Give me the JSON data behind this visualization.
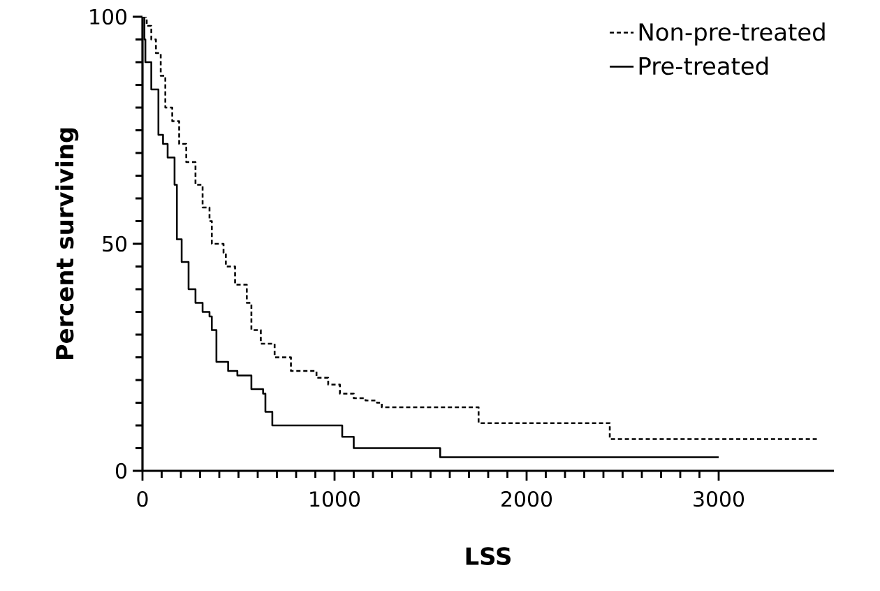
{
  "chart_data": {
    "type": "step",
    "xlabel": "LSS",
    "ylabel": "Percent surviving",
    "xlim": [
      0,
      3600
    ],
    "ylim": [
      0,
      100
    ],
    "xticks": [
      0,
      1000,
      2000,
      3000
    ],
    "yticks": [
      0,
      50,
      100
    ],
    "grid": false,
    "legend": "top right",
    "series": [
      {
        "name": "Non-pre-treated",
        "color": "#000000",
        "line_style": "dashed",
        "x": [
          0,
          22,
          46,
          70,
          95,
          119,
          155,
          191,
          228,
          276,
          313,
          349,
          361,
          422,
          434,
          482,
          543,
          567,
          616,
          688,
          773,
          906,
          967,
          1028,
          1100,
          1161,
          1221,
          1246,
          1750,
          2433,
          3511
        ],
        "values": [
          100,
          98,
          95,
          92,
          87,
          80,
          77,
          72,
          68,
          63,
          58,
          55,
          50,
          48,
          45,
          41,
          37,
          31,
          28,
          25,
          22,
          20.5,
          19,
          17,
          16,
          15.5,
          15,
          14,
          10.5,
          7,
          7
        ]
      },
      {
        "name": "Pre-treated",
        "color": "#000000",
        "line_style": "solid",
        "x": [
          0,
          10,
          15,
          46,
          83,
          107,
          131,
          167,
          179,
          204,
          240,
          276,
          313,
          349,
          361,
          385,
          446,
          494,
          567,
          628,
          640,
          676,
          1040,
          1100,
          1550,
          3000
        ],
        "values": [
          100,
          95,
          90,
          84,
          74,
          72,
          69,
          63,
          51,
          46,
          40,
          37,
          35,
          34,
          31,
          24,
          22,
          21,
          18,
          17,
          13,
          10,
          7.5,
          5,
          3,
          3
        ]
      }
    ]
  }
}
